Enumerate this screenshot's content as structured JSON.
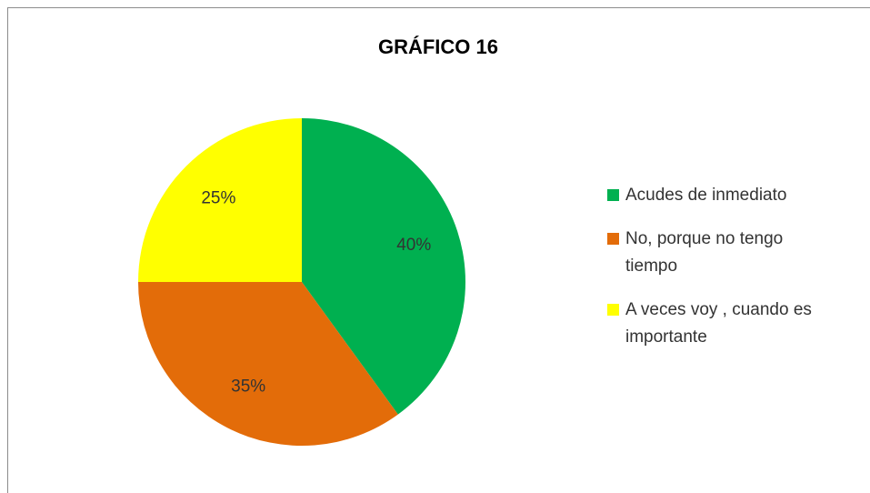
{
  "chart_data": {
    "type": "pie",
    "title": "GRÁFICO 16",
    "categories": [
      "Acudes de inmediato",
      "No, porque no tengo tiempo",
      "A veces voy , cuando es importante"
    ],
    "values": [
      40,
      35,
      25
    ],
    "value_labels": [
      "40%",
      "35%",
      "25%"
    ],
    "colors": [
      "#00b050",
      "#e36c09",
      "#ffff00"
    ],
    "legend": "right"
  }
}
